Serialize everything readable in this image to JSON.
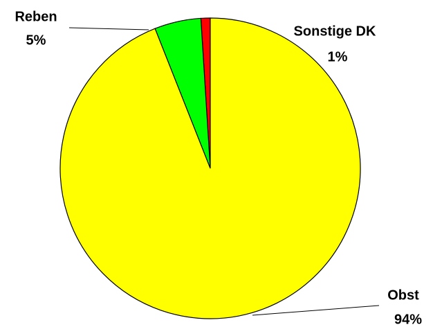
{
  "chart_data": {
    "type": "pie",
    "categories": [
      "Sonstige DK",
      "Reben",
      "Obst"
    ],
    "values": [
      1,
      5,
      94
    ],
    "value_labels": [
      "1%",
      "5%",
      "94%"
    ],
    "colors": [
      "#ff0000",
      "#00ff00",
      "#ffff00"
    ]
  }
}
